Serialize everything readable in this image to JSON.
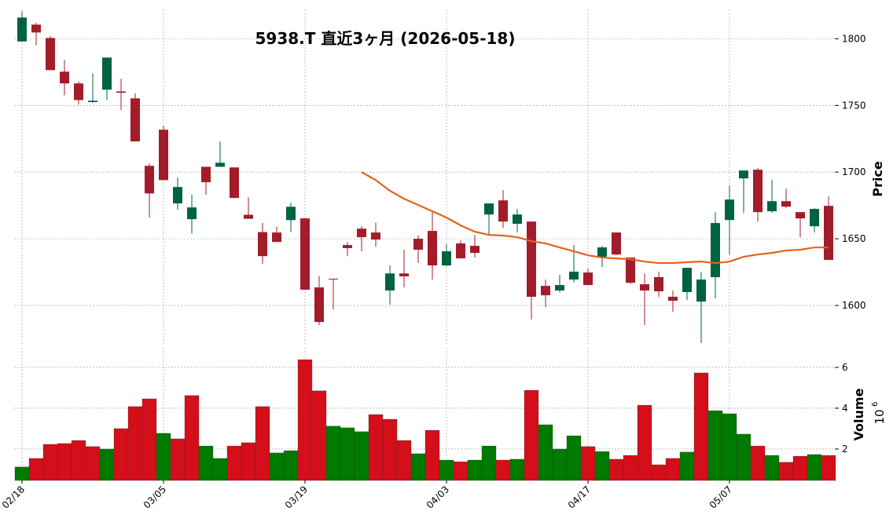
{
  "chart_data": {
    "type": "candlestick",
    "title": "5938.T 直近3ヶ月 (2026-05-18)",
    "y_label": "Price",
    "x": [
      "02/18",
      null,
      null,
      null,
      null,
      null,
      null,
      null,
      null,
      null,
      "03/05",
      null,
      null,
      null,
      null,
      null,
      null,
      null,
      null,
      null,
      "03/19",
      null,
      null,
      null,
      null,
      null,
      null,
      null,
      null,
      null,
      "04/03",
      null,
      null,
      null,
      null,
      null,
      null,
      null,
      null,
      null,
      "04/17",
      null,
      null,
      null,
      null,
      null,
      null,
      null,
      null,
      null,
      "05/07",
      null,
      null,
      null,
      null,
      null,
      null,
      null
    ],
    "open": [
      1798,
      1810.6,
      1800.6,
      1775.3,
      1766.5,
      1752.5,
      1761.8,
      1760.5,
      1755.3,
      1704.7,
      1731.8,
      1676.5,
      1664.7,
      1704,
      1704,
      1703.5,
      1668,
      1655,
      1654.7,
      1664,
      1665.3,
      1613.5,
      1620,
      1645.3,
      1657.6,
      1654.7,
      1611.2,
      1624,
      1650,
      1655.9,
      1630,
      1646.5,
      1644.7,
      1668.2,
      1678.8,
      1661.2,
      1662.9,
      1614.7,
      1611.2,
      1619.4,
      1624.7,
      1636.5,
      1654.7,
      1635.9,
      1615.9,
      1621.2,
      1606.5,
      1610,
      1602.9,
      1621.2,
      1664.1,
      1695.3,
      1701.8,
      1670.6,
      1678.2,
      1670,
      1659.4,
      1674.7
    ],
    "high": [
      1820.6,
      1812,
      1802,
      1784,
      1768,
      1774,
      1785.9,
      1770,
      1759,
      1706.5,
      1734.7,
      1696,
      1683,
      1704,
      1723,
      1703.5,
      1681,
      1662,
      1659,
      1677,
      1665.3,
      1622,
      1620,
      1647.6,
      1659.4,
      1662,
      1630,
      1641.8,
      1652.4,
      1670,
      1645.9,
      1648.8,
      1652.9,
      1676.5,
      1686.5,
      1672.4,
      1662.9,
      1619.4,
      1622.9,
      1645.3,
      1627.6,
      1644.7,
      1654.7,
      1635.9,
      1624,
      1625.3,
      1611.2,
      1628.2,
      1625.3,
      1670,
      1690,
      1701.2,
      1703,
      1694,
      1687.6,
      1670,
      1673,
      1681.8
    ],
    "low": [
      1798,
      1795,
      1776.5,
      1757.6,
      1750.6,
      1752,
      1754,
      1746.5,
      1723,
      1666,
      1694,
      1671.8,
      1654,
      1683,
      1704,
      1680.6,
      1665,
      1631,
      1647.6,
      1655,
      1611.8,
      1585.3,
      1597,
      1637,
      1640.6,
      1644,
      1600.6,
      1613.5,
      1631.8,
      1619.4,
      1629.4,
      1635.3,
      1635.9,
      1652.9,
      1658.2,
      1654.7,
      1589.4,
      1598.8,
      1610,
      1617,
      1615.3,
      1628.8,
      1637.6,
      1616,
      1585.3,
      1606.5,
      1595.3,
      1604,
      1571.8,
      1605.3,
      1638.2,
      1669.4,
      1662.9,
      1669.4,
      1672.9,
      1651.2,
      1654.7,
      1634.1
    ],
    "close": [
      1815.9,
      1804.7,
      1776.5,
      1766.5,
      1754,
      1753.5,
      1785.9,
      1759.5,
      1723,
      1684,
      1694,
      1688.8,
      1673.5,
      1692.4,
      1707,
      1680.6,
      1665,
      1637,
      1647.6,
      1674,
      1611.8,
      1587.6,
      1619.4,
      1643,
      1651.2,
      1649.4,
      1624,
      1621.8,
      1641.8,
      1630,
      1640.6,
      1635.3,
      1639.4,
      1676.5,
      1662.9,
      1668.2,
      1606.5,
      1607.6,
      1615.3,
      1625.3,
      1615.3,
      1643.5,
      1638.2,
      1617,
      1611.2,
      1610.6,
      1603.5,
      1628.2,
      1619.4,
      1661.8,
      1679.4,
      1701.2,
      1670,
      1678.2,
      1674.1,
      1665.3,
      1672.4,
      1634.1
    ],
    "ma": {
      "color": "#e8601c",
      "values": [
        null,
        null,
        null,
        null,
        null,
        null,
        null,
        null,
        null,
        null,
        null,
        null,
        null,
        null,
        null,
        null,
        null,
        null,
        null,
        null,
        null,
        null,
        null,
        null,
        1700,
        1694,
        1686,
        1680,
        1675.3,
        1670.6,
        1665.9,
        1660,
        1655.3,
        1652.9,
        1652.4,
        1651.2,
        1648.2,
        1646.5,
        1643.5,
        1640.6,
        1637.6,
        1635.9,
        1635.3,
        1634.7,
        1632.9,
        1631.8,
        1631.8,
        1632.4,
        1632.9,
        1631.8,
        1632.9,
        1636.5,
        1638.2,
        1639.4,
        1641.2,
        1641.8,
        1643.5,
        1643.5
      ]
    },
    "colors": {
      "up": "#006340",
      "down": "#a31c2a",
      "volume_up": "#007a00",
      "volume_down": "#d40f1a"
    },
    "ylim": [
      1570,
      1822
    ],
    "yticks": [
      1600,
      1650,
      1700,
      1750,
      1800
    ],
    "grid": true,
    "volume": {
      "label": "Volume",
      "scale_base": "10",
      "scale_exponent": "6",
      "values": [
        1.12,
        1.54,
        2.23,
        2.27,
        2.42,
        2.12,
        2.0,
        3.0,
        4.08,
        4.46,
        2.77,
        2.5,
        4.62,
        2.15,
        1.54,
        2.15,
        2.31,
        4.08,
        1.81,
        1.92,
        6.38,
        4.85,
        3.12,
        3.04,
        2.85,
        3.69,
        3.46,
        2.42,
        1.77,
        2.92,
        1.46,
        1.38,
        1.46,
        2.15,
        1.46,
        1.5,
        4.88,
        3.19,
        2.0,
        2.65,
        2.12,
        1.88,
        1.5,
        1.69,
        4.15,
        1.23,
        1.54,
        1.85,
        5.73,
        3.88,
        3.73,
        2.73,
        2.15,
        1.69,
        1.35,
        1.65,
        1.73,
        1.69
      ],
      "ylim": [
        0.46,
        6.96
      ],
      "yticks": [
        2,
        4,
        6
      ]
    }
  }
}
